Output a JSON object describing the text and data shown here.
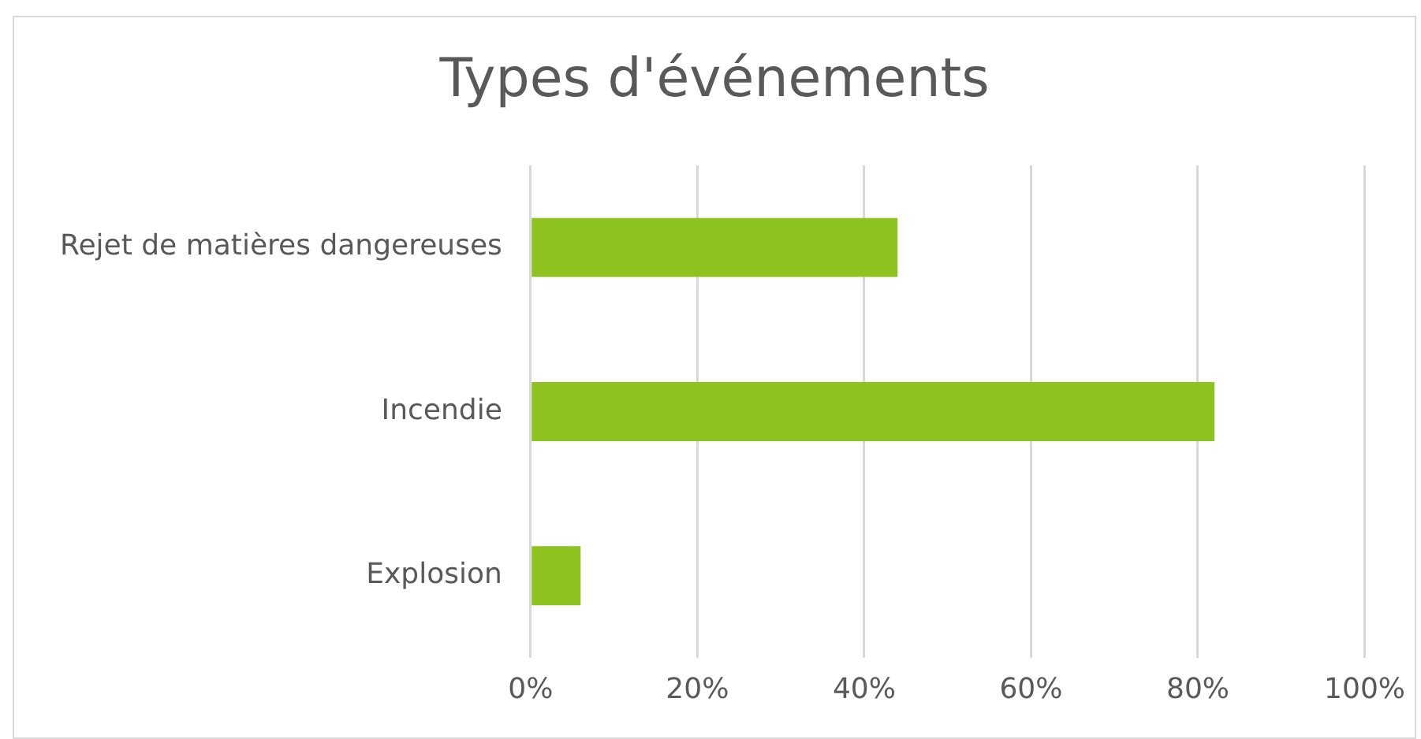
{
  "chart_data": {
    "type": "bar",
    "orientation": "horizontal",
    "title": "Types d'événements",
    "categories": [
      "Rejet de matières dangereuses",
      "Incendie",
      "Explosion"
    ],
    "values": [
      44,
      82,
      6
    ],
    "color": "#8dc21f",
    "xlim": [
      0,
      100
    ],
    "xticks": [
      {
        "value": 0,
        "label": "0%"
      },
      {
        "value": 20,
        "label": "20%"
      },
      {
        "value": 40,
        "label": "40%"
      },
      {
        "value": 60,
        "label": "60%"
      },
      {
        "value": 80,
        "label": "80%"
      },
      {
        "value": 100,
        "label": "100%"
      }
    ],
    "grid": "x"
  }
}
